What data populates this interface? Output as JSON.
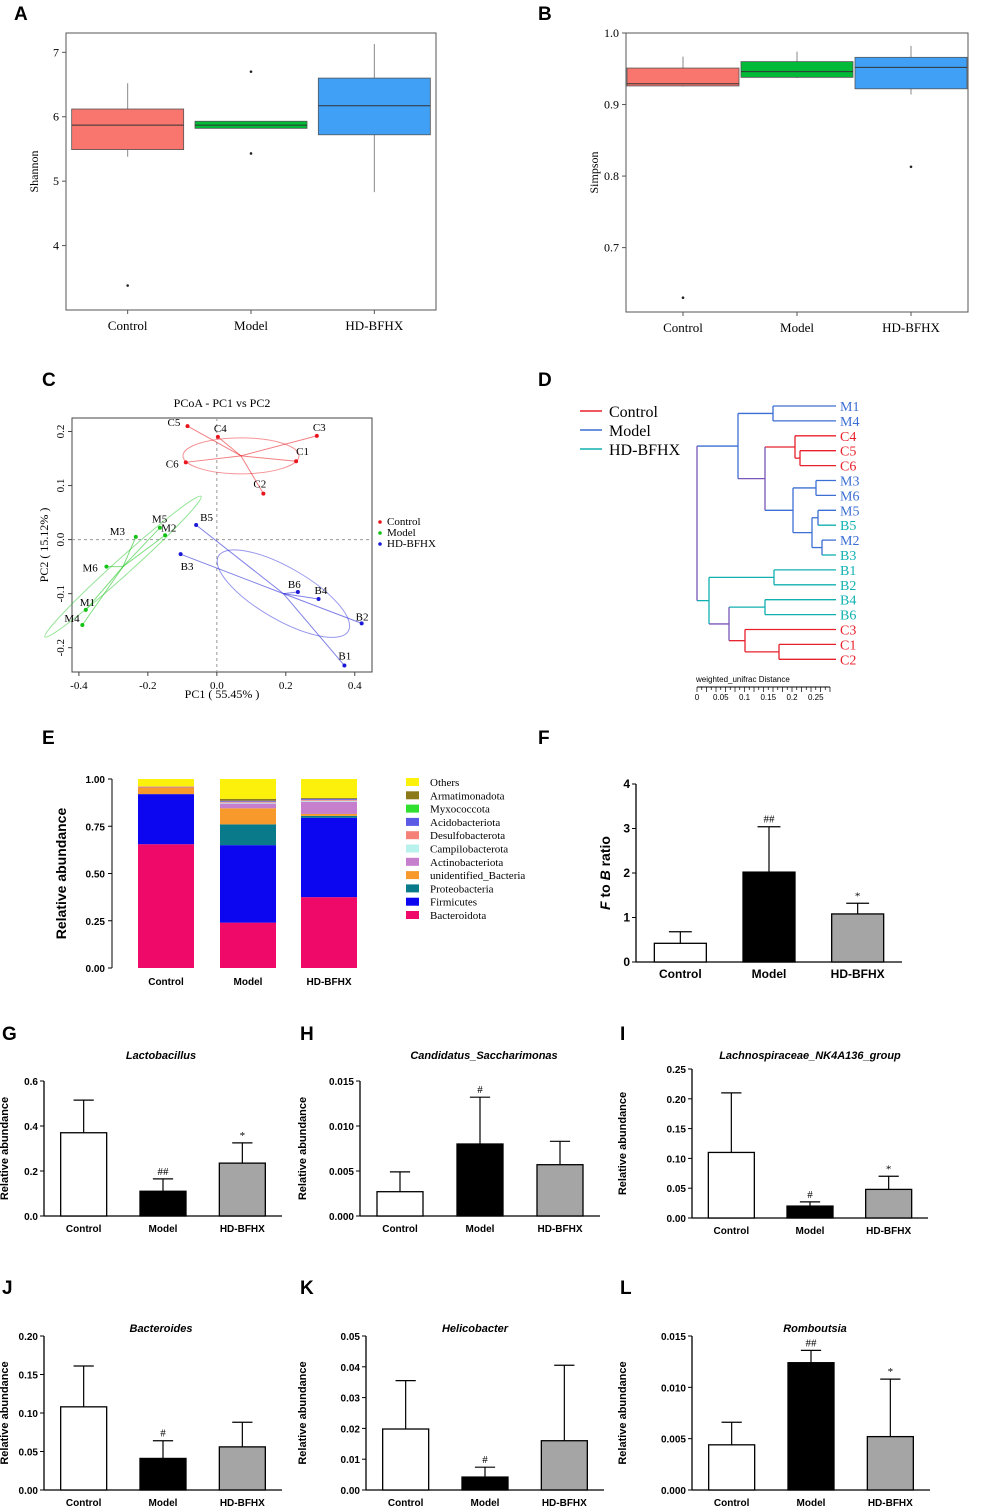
{
  "panels": {
    "A": {
      "letter": "A",
      "ylabel": "Shannon",
      "categories": [
        "Control",
        "Model",
        "HD-BFHX"
      ],
      "yticks": [
        4,
        5,
        6,
        7
      ],
      "ylim": [
        3.0,
        7.3
      ],
      "boxes": [
        {
          "min": 5.38,
          "q1": 5.49,
          "median": 5.87,
          "q3": 6.12,
          "max": 6.52,
          "outliers": [
            3.38
          ],
          "color": "#f8766d"
        },
        {
          "min": 5.82,
          "q1": 5.82,
          "median": 5.87,
          "q3": 5.93,
          "max": 5.93,
          "outliers": [
            6.7,
            5.43
          ],
          "color": "#00ba38"
        },
        {
          "min": 4.83,
          "q1": 5.72,
          "median": 6.17,
          "q3": 6.6,
          "max": 7.13,
          "outliers": [],
          "color": "#3fa0f5"
        }
      ]
    },
    "B": {
      "letter": "B",
      "ylabel": "Simpson",
      "categories": [
        "Control",
        "Model",
        "HD-BFHX"
      ],
      "yticks": [
        "0.7",
        "0.8",
        "0.9",
        "1.0"
      ],
      "ylim": [
        0.61,
        1.0
      ],
      "boxes": [
        {
          "min": 0.925,
          "q1": 0.926,
          "median": 0.929,
          "q3": 0.951,
          "max": 0.967,
          "outliers": [
            0.63
          ],
          "color": "#f8766d"
        },
        {
          "min": 0.937,
          "q1": 0.938,
          "median": 0.946,
          "q3": 0.96,
          "max": 0.974,
          "outliers": [],
          "color": "#00ba38"
        },
        {
          "min": 0.914,
          "q1": 0.922,
          "median": 0.952,
          "q3": 0.966,
          "max": 0.982,
          "outliers": [
            0.813
          ],
          "color": "#3fa0f5"
        }
      ]
    },
    "C": {
      "letter": "C",
      "title": "PCoA - PC1 vs PC2",
      "xlabel": "PC1 ( 55.45% )",
      "ylabel": "PC2 ( 15.12% )",
      "xticks": [
        "-0.4",
        "-0.2",
        "0.0",
        "0.2",
        "0.4"
      ],
      "yticks": [
        "0.2",
        "0.1",
        "0.0",
        "-0.1",
        "-0.2"
      ],
      "xlim": [
        -0.42,
        0.45
      ],
      "ylim": [
        -0.245,
        0.225
      ],
      "legend": [
        "Control",
        "Model",
        "HD-BFHX"
      ],
      "group_colors": [
        "#e8151c",
        "#12c214",
        "#1a1ad6"
      ],
      "points": [
        {
          "label": "C1",
          "x": 0.23,
          "y": 0.145,
          "group": 0
        },
        {
          "label": "C2",
          "x": 0.135,
          "y": 0.085,
          "group": 0
        },
        {
          "label": "C3",
          "x": 0.29,
          "y": 0.192,
          "group": 0
        },
        {
          "label": "C4",
          "x": 0.003,
          "y": 0.19,
          "group": 0
        },
        {
          "label": "C5",
          "x": -0.085,
          "y": 0.21,
          "group": 0
        },
        {
          "label": "C6",
          "x": -0.09,
          "y": 0.143,
          "group": 0
        },
        {
          "label": "M1",
          "x": -0.38,
          "y": -0.13,
          "group": 1
        },
        {
          "label": "M2",
          "x": -0.15,
          "y": 0.008,
          "group": 1
        },
        {
          "label": "M3",
          "x": -0.235,
          "y": 0.005,
          "group": 1
        },
        {
          "label": "M4",
          "x": -0.39,
          "y": -0.158,
          "group": 1
        },
        {
          "label": "M5",
          "x": -0.165,
          "y": 0.022,
          "group": 1
        },
        {
          "label": "M6",
          "x": -0.32,
          "y": -0.05,
          "group": 1
        },
        {
          "label": "B1",
          "x": 0.37,
          "y": -0.233,
          "group": 2
        },
        {
          "label": "B2",
          "x": 0.42,
          "y": -0.155,
          "group": 2
        },
        {
          "label": "B3",
          "x": -0.105,
          "y": -0.027,
          "group": 2
        },
        {
          "label": "B4",
          "x": 0.295,
          "y": -0.11,
          "group": 2
        },
        {
          "label": "B5",
          "x": -0.06,
          "y": 0.027,
          "group": 2
        },
        {
          "label": "B6",
          "x": 0.235,
          "y": -0.097,
          "group": 2
        }
      ],
      "centroids": [
        {
          "x": 0.07,
          "y": 0.155
        },
        {
          "x": -0.272,
          "y": -0.05
        },
        {
          "x": 0.193,
          "y": -0.1
        }
      ]
    },
    "D": {
      "letter": "D",
      "axis_label": "weighted_unifrac Distance",
      "xticks": [
        "0",
        "0.05",
        "0.1",
        "0.15",
        "0.2",
        "0.25"
      ],
      "legend": [
        "Control",
        "Model",
        "HD-BFHX"
      ],
      "group_colors": [
        "#e8202c",
        "#3c6fd4",
        "#10b0b0"
      ],
      "leaves": [
        {
          "label": "M1",
          "group": 1
        },
        {
          "label": "M4",
          "group": 1
        },
        {
          "label": "C4",
          "group": 0
        },
        {
          "label": "C5",
          "group": 0
        },
        {
          "label": "C6",
          "group": 0
        },
        {
          "label": "M3",
          "group": 1
        },
        {
          "label": "M6",
          "group": 1
        },
        {
          "label": "M5",
          "group": 1
        },
        {
          "label": "B5",
          "group": 2
        },
        {
          "label": "M2",
          "group": 1
        },
        {
          "label": "B3",
          "group": 2
        },
        {
          "label": "B1",
          "group": 2
        },
        {
          "label": "B2",
          "group": 2
        },
        {
          "label": "B4",
          "group": 2
        },
        {
          "label": "B6",
          "group": 2
        },
        {
          "label": "C3",
          "group": 0
        },
        {
          "label": "C1",
          "group": 0
        },
        {
          "label": "C2",
          "group": 0
        }
      ]
    },
    "E": {
      "letter": "E",
      "ylabel": "Relative abundance",
      "categories": [
        "Control",
        "Model",
        "HD-BFHX"
      ],
      "yticks": [
        "0.00",
        "0.25",
        "0.50",
        "0.75",
        "1.00"
      ],
      "series": [
        {
          "name": "Bacteroidota",
          "color": "#ef0a6a",
          "values": [
            0.655,
            0.24,
            0.375
          ]
        },
        {
          "name": "Firmicutes",
          "color": "#0c06f0",
          "values": [
            0.265,
            0.41,
            0.42
          ]
        },
        {
          "name": "Proteobacteria",
          "color": "#087a8a",
          "values": [
            0.0,
            0.11,
            0.01
          ]
        },
        {
          "name": "unidentified_Bacteria",
          "color": "#f79a2b",
          "values": [
            0.035,
            0.085,
            0.01
          ]
        },
        {
          "name": "Actinobacteriota",
          "color": "#c57fcc",
          "values": [
            0.005,
            0.025,
            0.065
          ]
        },
        {
          "name": "Campilobacterota",
          "color": "#b8f2ec",
          "values": [
            0.0,
            0.005,
            0.005
          ]
        },
        {
          "name": "Desulfobacterota",
          "color": "#f48078",
          "values": [
            0.0,
            0.005,
            0.005
          ]
        },
        {
          "name": "Acidobacteriota",
          "color": "#5a5ae6",
          "values": [
            0.0,
            0.005,
            0.005
          ]
        },
        {
          "name": "Myxococcota",
          "color": "#2fe02f",
          "values": [
            0.0,
            0.0,
            0.0
          ]
        },
        {
          "name": "Armatimonadota",
          "color": "#8c7a1a",
          "values": [
            0.0,
            0.01,
            0.005
          ]
        },
        {
          "name": "Others",
          "color": "#fbf10a",
          "values": [
            0.04,
            0.105,
            0.1
          ]
        }
      ],
      "legend_order": [
        "Others",
        "Armatimonadota",
        "Myxococcota",
        "Acidobacteriota",
        "Desulfobacterota",
        "Campilobacterota",
        "Actinobacteriota",
        "unidentified_Bacteria",
        "Proteobacteria",
        "Firmicutes",
        "Bacteroidota"
      ]
    },
    "F": {
      "letter": "F",
      "ylabel_parts": [
        "F",
        " to ",
        "B",
        " ratio"
      ],
      "categories": [
        "Control",
        "Model",
        "HD-BFHX"
      ],
      "yticks": [
        "0",
        "1",
        "2",
        "3",
        "4"
      ],
      "ymax": 4,
      "values": [
        0.42,
        2.02,
        1.08
      ],
      "errors": [
        0.26,
        1.02,
        0.24
      ],
      "marks": [
        "",
        "##",
        "*"
      ]
    },
    "G": {
      "letter": "G",
      "title": "Lactobacillus",
      "yticks": [
        "0.0",
        "0.2",
        "0.4",
        "0.6"
      ],
      "ymax": 0.6,
      "categories": [
        "Control",
        "Model",
        "HD-BFHX"
      ],
      "values": [
        0.37,
        0.11,
        0.235
      ],
      "errors": [
        0.145,
        0.055,
        0.09
      ],
      "marks": [
        "",
        "##",
        "*"
      ],
      "ylabel": "Relative abundance"
    },
    "H": {
      "letter": "H",
      "title": "Candidatus_Saccharimonas",
      "yticks": [
        "0.000",
        "0.005",
        "0.010",
        "0.015"
      ],
      "ymax": 0.015,
      "categories": [
        "Control",
        "Model",
        "HD-BFHX"
      ],
      "values": [
        0.0027,
        0.008,
        0.0057
      ],
      "errors": [
        0.0022,
        0.0052,
        0.0026
      ],
      "marks": [
        "",
        "#",
        ""
      ],
      "ylabel": "Relative abundance"
    },
    "I": {
      "letter": "I",
      "title": "Lachnospiraceae_NK4A136_group",
      "yticks": [
        "0.00",
        "0.05",
        "0.10",
        "0.15",
        "0.20",
        "0.25"
      ],
      "ymax": 0.25,
      "categories": [
        "Control",
        "Model",
        "HD-BFHX"
      ],
      "values": [
        0.11,
        0.02,
        0.048
      ],
      "errors": [
        0.1,
        0.007,
        0.022
      ],
      "marks": [
        "",
        "#",
        "*"
      ],
      "ylabel": "Relative abundance"
    },
    "J": {
      "letter": "J",
      "title": "Bacteroides",
      "yticks": [
        "0.00",
        "0.05",
        "0.10",
        "0.15",
        "0.20"
      ],
      "ymax": 0.2,
      "categories": [
        "Control",
        "Model",
        "HD-BFHX"
      ],
      "values": [
        0.108,
        0.041,
        0.056
      ],
      "errors": [
        0.053,
        0.023,
        0.032
      ],
      "marks": [
        "",
        "#",
        ""
      ],
      "ylabel": "Relative abundance"
    },
    "K": {
      "letter": "K",
      "title": "Helicobacter",
      "yticks": [
        "0.00",
        "0.01",
        "0.02",
        "0.03",
        "0.04",
        "0.05"
      ],
      "ymax": 0.05,
      "categories": [
        "Control",
        "Model",
        "HD-BFHX"
      ],
      "values": [
        0.0198,
        0.0042,
        0.016
      ],
      "errors": [
        0.0157,
        0.0032,
        0.0245
      ],
      "marks": [
        "",
        "#",
        ""
      ],
      "ylabel": "Relative abundance"
    },
    "L": {
      "letter": "L",
      "title": "Romboutsia",
      "yticks": [
        "0.000",
        "0.005",
        "0.010",
        "0.015"
      ],
      "ymax": 0.015,
      "categories": [
        "Control",
        "Model",
        "HD-BFHX"
      ],
      "values": [
        0.0044,
        0.0124,
        0.0052
      ],
      "errors": [
        0.0022,
        0.0012,
        0.0056
      ],
      "marks": [
        "",
        "##",
        "*"
      ],
      "ylabel": "Relative abundance"
    }
  }
}
